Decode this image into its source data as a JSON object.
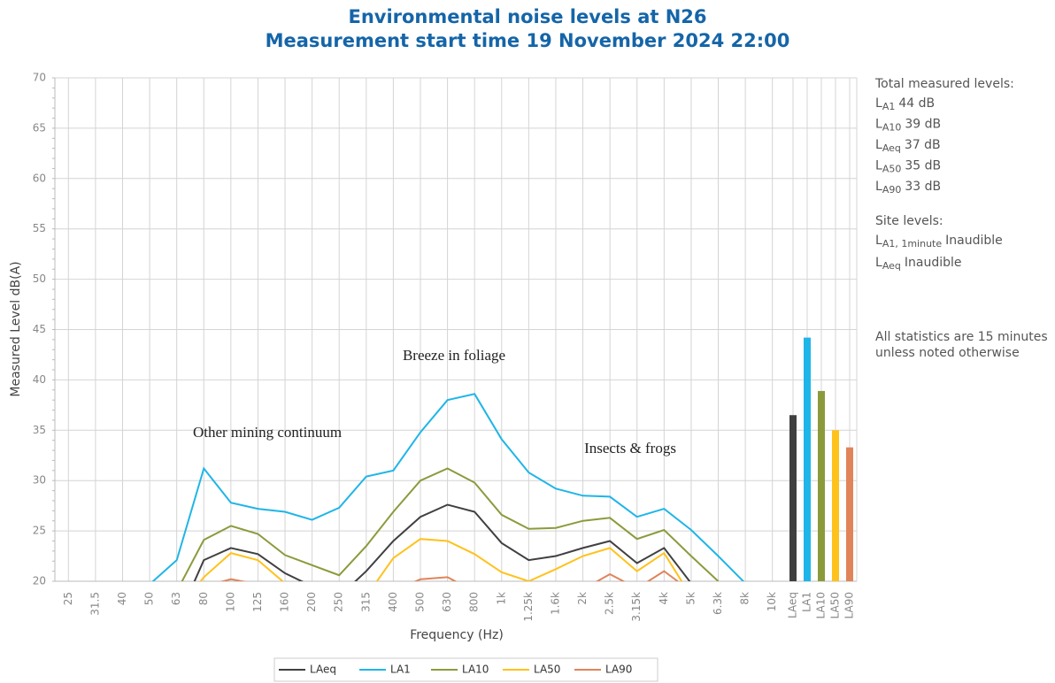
{
  "chart_data": {
    "type": "line",
    "title": [
      "Environmental noise levels at N26",
      "Measurement start time 19 November 2024 22:00"
    ],
    "x_label": "Frequency (Hz)",
    "y_label": "Measured Level dB(A)",
    "categories": [
      "25",
      "31.5",
      "40",
      "50",
      "63",
      "80",
      "100",
      "125",
      "160",
      "200",
      "250",
      "315",
      "400",
      "500",
      "630",
      "800",
      "1k",
      "1.25k",
      "1.6k",
      "2k",
      "2.5k",
      "3.15k",
      "4k",
      "5k",
      "6.3k",
      "8k",
      "10k"
    ],
    "ylim": [
      20,
      70
    ],
    "yticks": [
      20,
      25,
      30,
      35,
      40,
      45,
      50,
      55,
      60,
      65,
      70
    ],
    "grid": true,
    "series": [
      {
        "name": "LAeq",
        "color": "#404040",
        "values": [
          null,
          null,
          null,
          null,
          16,
          22.1,
          23.3,
          22.7,
          20.8,
          19.5,
          18.5,
          21.0,
          24.0,
          26.4,
          27.6,
          26.9,
          23.8,
          22.1,
          22.5,
          23.3,
          24.0,
          21.8,
          23.3,
          19.8,
          null,
          null,
          null
        ]
      },
      {
        "name": "LA1",
        "color": "#1fb5e8",
        "values": [
          null,
          null,
          null,
          19.7,
          22.1,
          31.2,
          27.8,
          27.2,
          26.9,
          26.1,
          27.3,
          30.4,
          31.0,
          34.8,
          38.0,
          38.6,
          34.1,
          30.8,
          29.2,
          28.5,
          28.4,
          26.4,
          27.2,
          25.1,
          22.5,
          19.8,
          null
        ]
      },
      {
        "name": "LA10",
        "color": "#8c9a3c",
        "values": [
          null,
          null,
          null,
          null,
          19.0,
          24.1,
          25.5,
          24.7,
          22.6,
          21.6,
          20.6,
          23.5,
          26.9,
          30.0,
          31.2,
          29.8,
          26.6,
          25.2,
          25.3,
          26.0,
          26.3,
          24.2,
          25.1,
          22.5,
          20.0,
          null,
          null
        ]
      },
      {
        "name": "LA50",
        "color": "#ffc21c",
        "values": [
          null,
          null,
          null,
          null,
          17,
          20.4,
          22.8,
          22.1,
          19.8,
          null,
          null,
          18.5,
          22.3,
          24.2,
          24.0,
          22.7,
          20.9,
          20.0,
          21.2,
          22.5,
          23.3,
          21.0,
          22.8,
          18.5,
          null,
          null,
          null
        ]
      },
      {
        "name": "LA90",
        "color": "#e0845a",
        "values": [
          null,
          null,
          null,
          null,
          null,
          19.5,
          20.2,
          19.7,
          null,
          null,
          null,
          null,
          19.0,
          20.2,
          20.4,
          19.0,
          null,
          null,
          null,
          19.2,
          20.7,
          19.3,
          21.0,
          19.0,
          null,
          null,
          null
        ]
      }
    ],
    "totals": {
      "categories": [
        "LAeq",
        "LA1",
        "LA10",
        "LA50",
        "LA90"
      ],
      "values": [
        36.5,
        44.2,
        38.9,
        35.0,
        33.3
      ],
      "colors": [
        "#404040",
        "#1fb5e8",
        "#8c9a3c",
        "#ffc21c",
        "#e0845a"
      ]
    },
    "annotations": [
      "Breeze in foliage",
      "Other mining continuum",
      "Insects & frogs"
    ],
    "side_notes": {
      "total_heading": "Total measured levels:",
      "total_items": [
        {
          "symbol": "L",
          "sub": "A1",
          "text": "44 dB"
        },
        {
          "symbol": "L",
          "sub": "A10",
          "text": "39 dB"
        },
        {
          "symbol": "L",
          "sub": "Aeq",
          "text": "37 dB"
        },
        {
          "symbol": "L",
          "sub": "A50",
          "text": "35 dB"
        },
        {
          "symbol": "L",
          "sub": "A90",
          "text": "33 dB"
        }
      ],
      "site_heading": "Site levels:",
      "site_items": [
        {
          "symbol": "L",
          "sub": "A1, 1minute",
          "text": "Inaudible"
        },
        {
          "symbol": "L",
          "sub": "Aeq",
          "text": "Inaudible"
        }
      ],
      "footnote": [
        "All statistics are 15 minutes",
        "unless noted otherwise"
      ]
    }
  }
}
